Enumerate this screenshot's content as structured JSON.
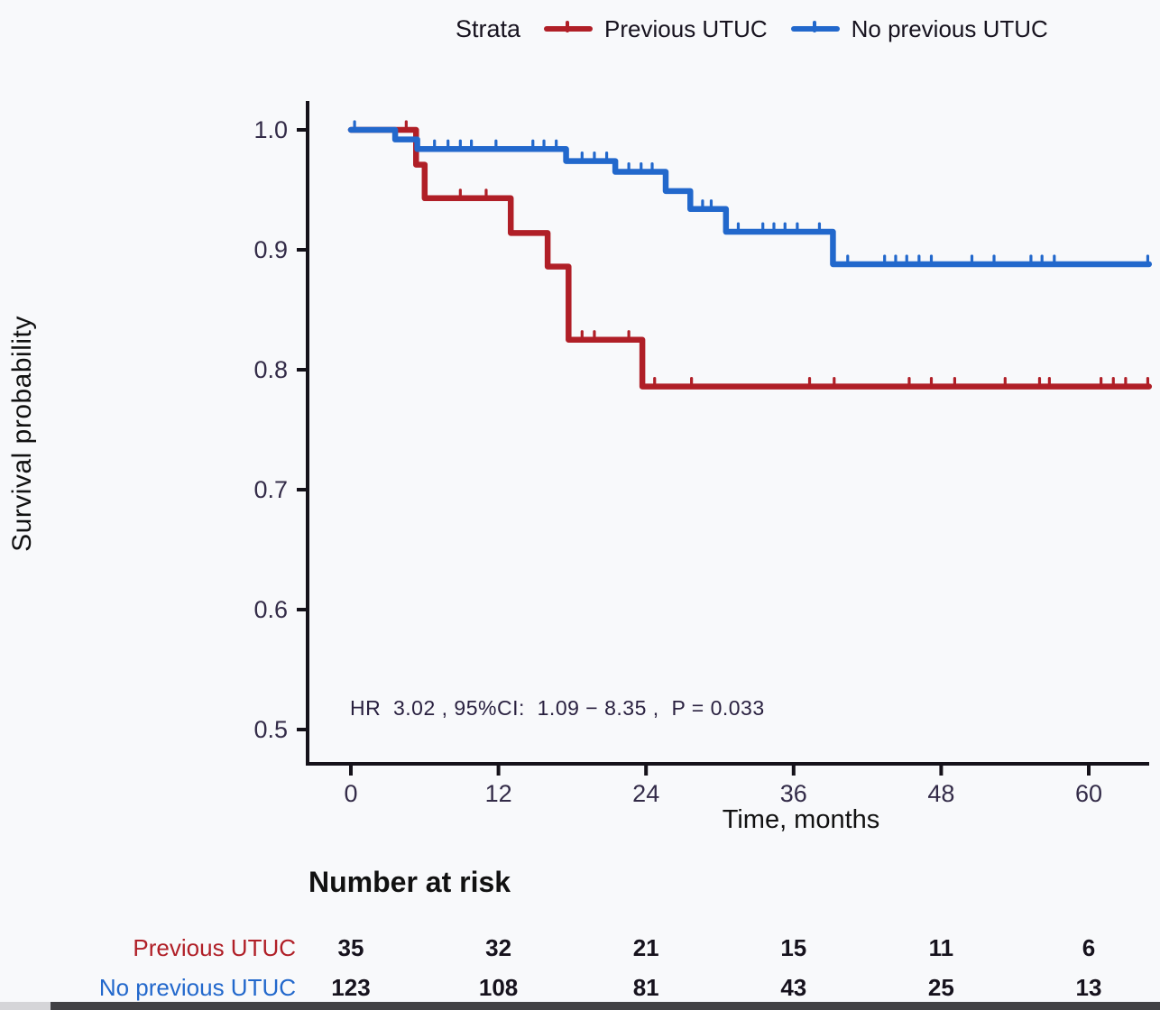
{
  "colors": {
    "red": "#b01f27",
    "blue": "#2268cc",
    "axis": "#15121a",
    "tick_label": "#332b48",
    "background": "#f8f9fb"
  },
  "legend": {
    "title": "Strata",
    "items": [
      {
        "label": "Previous UTUC",
        "color_key": "red"
      },
      {
        "label": "No previous UTUC",
        "color_key": "blue"
      }
    ]
  },
  "axes": {
    "y_label": "Survival probability",
    "x_label": "Time, months",
    "y_tick_labels": [
      "1.0",
      "0.9",
      "0.8",
      "0.7",
      "0.6",
      "0.5"
    ],
    "x_tick_labels": [
      "0",
      "12",
      "24",
      "36",
      "48",
      "60"
    ]
  },
  "annotation": "HR  3.02 , 95%CI:  1.09 − 8.35 ,  P = 0.033",
  "risk_table": {
    "title": "Number at risk",
    "rows": [
      {
        "label": "Previous UTUC",
        "color_key": "red",
        "values": [
          "35",
          "32",
          "21",
          "15",
          "11",
          "6"
        ]
      },
      {
        "label": "No previous UTUC",
        "color_key": "blue",
        "values": [
          "123",
          "108",
          "81",
          "43",
          "25",
          "13"
        ]
      }
    ]
  },
  "chart_data": {
    "type": "line",
    "subtype": "kaplan-meier-step",
    "title": "",
    "xlabel": "Time, months",
    "ylabel": "Survival probability",
    "xlim": [
      -3.5,
      65
    ],
    "ylim": [
      0.47,
      1.025
    ],
    "x_tick_values": [
      0,
      12,
      24,
      36,
      48,
      60
    ],
    "y_tick_values": [
      1.0,
      0.9,
      0.8,
      0.7,
      0.6,
      0.5
    ],
    "grid": false,
    "legend_position": "top",
    "annotation": "HR  3.02 , 95%CI:  1.09 − 8.35 ,  P = 0.033",
    "series": [
      {
        "name": "Previous UTUC",
        "color_key": "red",
        "end_time": 64.9,
        "steps": [
          [
            0,
            1.0
          ],
          [
            5.3,
            0.971
          ],
          [
            6.0,
            0.943
          ],
          [
            13.0,
            0.914
          ],
          [
            16.0,
            0.886
          ],
          [
            17.7,
            0.825
          ],
          [
            23.7,
            0.786
          ]
        ],
        "censors": [
          [
            4.5,
            1.0
          ],
          [
            8.9,
            0.943
          ],
          [
            11.0,
            0.943
          ],
          [
            18.8,
            0.825
          ],
          [
            19.8,
            0.825
          ],
          [
            22.6,
            0.825
          ],
          [
            24.7,
            0.786
          ],
          [
            27.7,
            0.786
          ],
          [
            37.3,
            0.786
          ],
          [
            39.3,
            0.786
          ],
          [
            45.4,
            0.786
          ],
          [
            47.2,
            0.786
          ],
          [
            49.1,
            0.786
          ],
          [
            53.2,
            0.786
          ],
          [
            56.0,
            0.786
          ],
          [
            56.8,
            0.786
          ],
          [
            61.0,
            0.786
          ],
          [
            62.0,
            0.786
          ],
          [
            63.0,
            0.786
          ],
          [
            64.8,
            0.786
          ]
        ]
      },
      {
        "name": "No previous UTUC",
        "color_key": "blue",
        "end_time": 64.9,
        "steps": [
          [
            0,
            1.0
          ],
          [
            3.6,
            0.992
          ],
          [
            5.4,
            0.984
          ],
          [
            17.5,
            0.974
          ],
          [
            21.5,
            0.965
          ],
          [
            25.6,
            0.949
          ],
          [
            27.6,
            0.934
          ],
          [
            30.5,
            0.915
          ],
          [
            39.2,
            0.888
          ]
        ],
        "censors": [
          [
            0.3,
            1.0
          ],
          [
            6.8,
            0.984
          ],
          [
            7.9,
            0.984
          ],
          [
            8.9,
            0.984
          ],
          [
            9.8,
            0.984
          ],
          [
            11.8,
            0.984
          ],
          [
            14.8,
            0.984
          ],
          [
            15.7,
            0.984
          ],
          [
            16.7,
            0.984
          ],
          [
            18.8,
            0.974
          ],
          [
            19.8,
            0.974
          ],
          [
            20.8,
            0.974
          ],
          [
            22.6,
            0.965
          ],
          [
            23.6,
            0.965
          ],
          [
            24.5,
            0.965
          ],
          [
            28.6,
            0.934
          ],
          [
            29.3,
            0.934
          ],
          [
            31.5,
            0.915
          ],
          [
            33.5,
            0.915
          ],
          [
            34.4,
            0.915
          ],
          [
            35.3,
            0.915
          ],
          [
            36.3,
            0.915
          ],
          [
            38.1,
            0.915
          ],
          [
            40.4,
            0.888
          ],
          [
            43.4,
            0.888
          ],
          [
            44.3,
            0.888
          ],
          [
            45.2,
            0.888
          ],
          [
            46.2,
            0.888
          ],
          [
            47.2,
            0.888
          ],
          [
            50.5,
            0.888
          ],
          [
            52.3,
            0.888
          ],
          [
            55.3,
            0.888
          ],
          [
            56.2,
            0.888
          ],
          [
            57.2,
            0.888
          ],
          [
            64.8,
            0.888
          ]
        ]
      }
    ]
  }
}
